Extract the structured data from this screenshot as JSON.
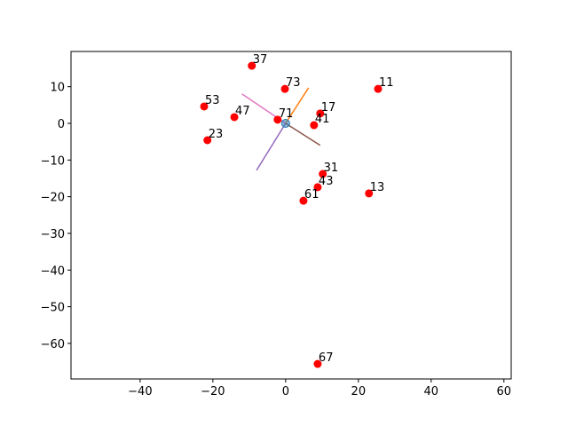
{
  "chart_data": {
    "type": "scatter",
    "xlim": [
      -59,
      62
    ],
    "ylim": [
      -69.7,
      19.6
    ],
    "xticks": [
      {
        "value": -40,
        "label": "−40"
      },
      {
        "value": -20,
        "label": "−20"
      },
      0,
      20,
      40,
      60
    ],
    "yticks": [
      10,
      0,
      {
        "value": -10,
        "label": "−10"
      },
      {
        "value": -20,
        "label": "−20"
      },
      {
        "value": -30,
        "label": "−30"
      },
      {
        "value": -40,
        "label": "−40"
      },
      {
        "value": -50,
        "label": "−50"
      },
      {
        "value": -60,
        "label": "−60"
      }
    ],
    "series": [
      {
        "color": "#ff7f0e",
        "line": true,
        "x": [
          0,
          6.3
        ],
        "values": [
          0,
          9.7
        ]
      },
      {
        "color": "#e377c2",
        "line": true,
        "x": [
          0,
          -12
        ],
        "values": [
          0,
          8
        ]
      },
      {
        "color": "#9467bd",
        "line": true,
        "x": [
          0,
          -8
        ],
        "values": [
          0,
          -12.8
        ]
      },
      {
        "color": "#8c564b",
        "line": true,
        "x": [
          0,
          9.5
        ],
        "values": [
          0,
          -6
        ]
      },
      {
        "color": "#ff0000",
        "x": [
          -9.3,
          -0.2,
          25.4,
          -22.4,
          -14.1,
          -2.2,
          9.5,
          7.8,
          -21.5,
          10.2,
          8.8,
          22.9,
          4.9,
          8.8
        ],
        "values": [
          15.7,
          9.4,
          9.4,
          4.6,
          1.7,
          1.0,
          2.7,
          -0.5,
          -4.6,
          -13.8,
          -17.4,
          -19.1,
          -21.1,
          -65.6
        ],
        "labels": [
          "37",
          "73",
          "11",
          "53",
          "47",
          "71",
          "17",
          "41",
          "23",
          "31",
          "43",
          "13",
          "61",
          "67"
        ]
      },
      {
        "color": "#1f77b4",
        "x": [
          0
        ],
        "values": [
          0
        ]
      }
    ]
  }
}
